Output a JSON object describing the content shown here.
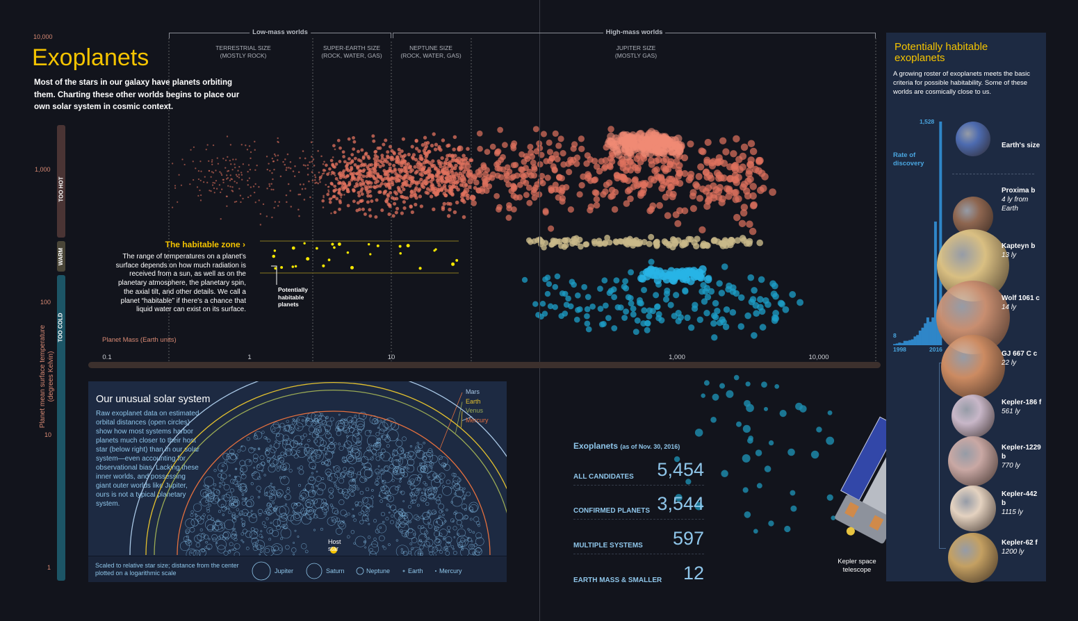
{
  "header": {
    "title": "Exoplanets",
    "intro": "Most of the stars in our galaxy have planets orbiting them. Charting these other worlds begins to place our own solar system in cosmic context."
  },
  "brackets": {
    "low": "Low-mass worlds",
    "high": "High-mass worlds"
  },
  "categories": [
    {
      "name": "TERRESTRIAL SIZE",
      "sub": "(MOSTLY ROCK)"
    },
    {
      "name": "SUPER-EARTH SIZE",
      "sub": "(ROCK, WATER, GAS)"
    },
    {
      "name": "NEPTUNE SIZE",
      "sub": "(ROCK, WATER, GAS)"
    },
    {
      "name": "JUPITER SIZE",
      "sub": "(MOSTLY GAS)"
    }
  ],
  "habitable": {
    "title": "The habitable zone",
    "text": "The range of temperatures on a planet's surface depends on how much radiation is received from a sun, as well as on the planetary atmosphere, the planetary spin, the axial tilt, and other details. We call a planet “habitable” if there's a chance that liquid water can exist on its surface.",
    "pointer": "Potentially habitable planets"
  },
  "temp_bands": [
    "TOO HOT",
    "WARM",
    "TOO COLD"
  ],
  "chart_data": [
    {
      "type": "scatter",
      "xlabel": "Planet Mass (Earth units)",
      "ylabel": "Planet mean surface temperature (degrees Kelvin)",
      "x_scale": "log",
      "y_scale": "log",
      "xlim": [
        0.1,
        20000
      ],
      "ylim": [
        1,
        10000
      ],
      "x_ticks": [
        "0.1",
        "1",
        "10",
        "1,000",
        "10,000"
      ],
      "y_ticks": [
        "10,000",
        "1,000",
        "100",
        "10",
        "1"
      ],
      "series_colors": {
        "too_hot": "#e0725e",
        "warm": "#c9b98a",
        "too_cold": "#1e9fc8",
        "potentially_habitable": "#f5e600"
      }
    },
    {
      "type": "bar",
      "title": "Rate of discovery",
      "x_range": [
        "1998",
        "2016"
      ],
      "min_label": "8",
      "max_label": "1,528",
      "categories": [
        1998,
        1999,
        2000,
        2001,
        2002,
        2003,
        2004,
        2005,
        2006,
        2007,
        2008,
        2009,
        2010,
        2011,
        2012,
        2013,
        2014,
        2015,
        2016
      ],
      "values": [
        8,
        12,
        18,
        15,
        30,
        30,
        35,
        40,
        60,
        70,
        100,
        120,
        150,
        190,
        160,
        190,
        845,
        150,
        1528
      ],
      "color": "#2f86c8"
    }
  ],
  "solar": {
    "title": "Our unusual solar system",
    "text": "Raw exoplanet data on estimated orbital distances (open circles) show how most systems harbor planets much closer to their host star (below right) than in our solar system—even accounting for observational bias. Lacking these inner worlds, and possessing giant outer worlds like Jupiter, ours is not a typical planetary system.",
    "orbits": [
      {
        "name": "Mars",
        "color": "#a9c8e6"
      },
      {
        "name": "Earth",
        "color": "#e3c12e"
      },
      {
        "name": "Venus",
        "color": "#9bab55"
      },
      {
        "name": "Mercury",
        "color": "#e5703e"
      }
    ],
    "host": "Host star",
    "scale_note": "Scaled to relative star size; distance from the center plotted on a logarithmic scale",
    "legend": [
      "Jupiter",
      "Saturn",
      "Neptune",
      "Earth",
      "Mercury"
    ]
  },
  "stats": {
    "title": "Exoplanets",
    "date": "(as of Nov. 30, 2016)",
    "rows": [
      {
        "label": "ALL CANDIDATES",
        "value": "5,454"
      },
      {
        "label": "CONFIRMED PLANETS",
        "value": "3,544"
      },
      {
        "label": "MULTIPLE SYSTEMS",
        "value": "597"
      },
      {
        "label": "EARTH MASS & SMALLER",
        "value": "12"
      }
    ]
  },
  "telescope": "Kepler space telescope",
  "sidebar": {
    "title": "Potentially habitable exoplanets",
    "text": "A growing roster of exoplanets meets the basic criteria for possible habitability. Some of these worlds are cosmically close to us.",
    "rate": "Rate of discovery",
    "max": "1,528",
    "min": "8",
    "start": "1998",
    "end": "2016",
    "planets": [
      {
        "name": "Earth's size",
        "dist": "",
        "color": "#4d6bb0"
      },
      {
        "name": "Proxima b",
        "dist": "4 ly from Earth",
        "color": "#8e6650"
      },
      {
        "name": "Kapteyn b",
        "dist": "13 ly",
        "color": "#d9bf82"
      },
      {
        "name": "Wolf 1061 c",
        "dist": "14 ly",
        "color": "#c88e70"
      },
      {
        "name": "GJ 667 C c",
        "dist": "22 ly",
        "color": "#cc8b62"
      },
      {
        "name": "Kepler-186 f",
        "dist": "561 ly",
        "color": "#c8b7c8"
      },
      {
        "name": "Kepler-1229 b",
        "dist": "770 ly",
        "color": "#c9a8a4"
      },
      {
        "name": "Kepler-442 b",
        "dist": "1115 ly",
        "color": "#e4d2c0"
      },
      {
        "name": "Kepler-62 f",
        "dist": "1200 ly",
        "color": "#c4a062"
      }
    ]
  }
}
